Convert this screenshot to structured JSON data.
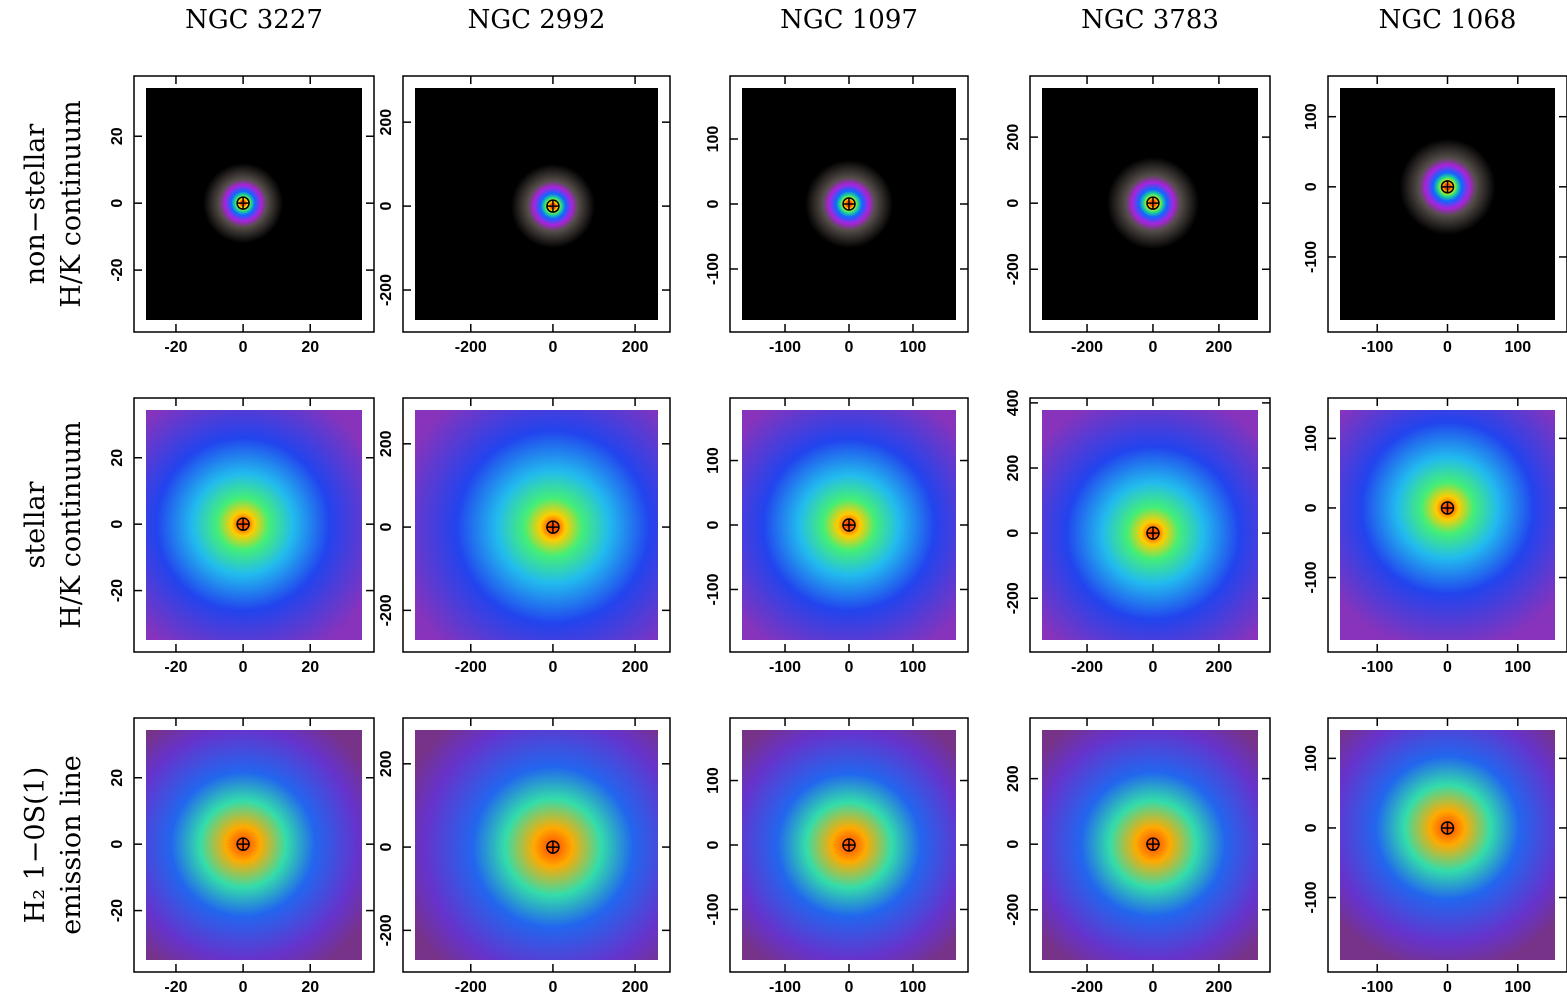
{
  "columns": [
    "NGC 3227",
    "NGC 2992",
    "NGC 1097",
    "NGC 3783",
    "NGC 1068"
  ],
  "rows": [
    [
      "non−stellar",
      "H/K continuum"
    ],
    [
      "stellar",
      "H/K continuum"
    ],
    [
      "H₂ 1−0S(1)",
      "emission line"
    ]
  ],
  "panels": [
    [
      {
        "xlim": [
          -32.5,
          39
        ],
        "ylim": [
          -38.5,
          38
        ],
        "xticks": [
          -20,
          0,
          20
        ],
        "yticks": [
          -20,
          0,
          20
        ]
      },
      {
        "xlim": [
          -365,
          285
        ],
        "ylim": [
          -300,
          310
        ],
        "xticks": [
          -200,
          0,
          200
        ],
        "yticks": [
          -200,
          0,
          200
        ]
      },
      {
        "xlim": [
          -186,
          186
        ],
        "ylim": [
          -197,
          197
        ],
        "xticks": [
          -100,
          0,
          100
        ],
        "yticks": [
          -100,
          0,
          100
        ]
      },
      {
        "xlim": [
          -373,
          355
        ],
        "ylim": [
          -390,
          385
        ],
        "xticks": [
          -200,
          0,
          200
        ],
        "yticks": [
          -200,
          0,
          200
        ]
      },
      {
        "xlim": [
          -170,
          170
        ],
        "ylim": [
          -207,
          158
        ],
        "xticks": [
          -100,
          0,
          100
        ],
        "yticks": [
          -100,
          0,
          100
        ]
      }
    ],
    [
      {
        "xlim": [
          -32.5,
          39
        ],
        "ylim": [
          -38.5,
          38
        ],
        "xticks": [
          -20,
          0,
          20
        ],
        "yticks": [
          -20,
          0,
          20
        ]
      },
      {
        "xlim": [
          -365,
          285
        ],
        "ylim": [
          -300,
          310
        ],
        "xticks": [
          -200,
          0,
          200
        ],
        "yticks": [
          -200,
          0,
          200
        ]
      },
      {
        "xlim": [
          -186,
          186
        ],
        "ylim": [
          -197,
          197
        ],
        "xticks": [
          -100,
          0,
          100
        ],
        "yticks": [
          -100,
          0,
          100
        ]
      },
      {
        "xlim": [
          -373,
          355
        ],
        "ylim": [
          -365,
          415
        ],
        "xticks": [
          -200,
          0,
          200
        ],
        "yticks": [
          -200,
          0,
          200,
          400
        ]
      },
      {
        "xlim": [
          -170,
          170
        ],
        "ylim": [
          -207,
          158
        ],
        "xticks": [
          -100,
          0,
          100
        ],
        "yticks": [
          -100,
          0,
          100
        ]
      }
    ],
    [
      {
        "xlim": [
          -32.5,
          39
        ],
        "ylim": [
          -38.5,
          38
        ],
        "xticks": [
          -20,
          0,
          20
        ],
        "yticks": [
          -20,
          0,
          20
        ]
      },
      {
        "xlim": [
          -365,
          285
        ],
        "ylim": [
          -300,
          310
        ],
        "xticks": [
          -200,
          0,
          200
        ],
        "yticks": [
          -200,
          0,
          200
        ]
      },
      {
        "xlim": [
          -186,
          186
        ],
        "ylim": [
          -197,
          197
        ],
        "xticks": [
          -100,
          0,
          100
        ],
        "yticks": [
          -100,
          0,
          100
        ]
      },
      {
        "xlim": [
          -373,
          355
        ],
        "ylim": [
          -390,
          385
        ],
        "xticks": [
          -200,
          0,
          200
        ],
        "yticks": [
          -200,
          0,
          200
        ]
      },
      {
        "xlim": [
          -170,
          170
        ],
        "ylim": [
          -207,
          158
        ],
        "xticks": [
          -100,
          0,
          100
        ],
        "yticks": [
          -100,
          0,
          100
        ]
      }
    ]
  ]
}
